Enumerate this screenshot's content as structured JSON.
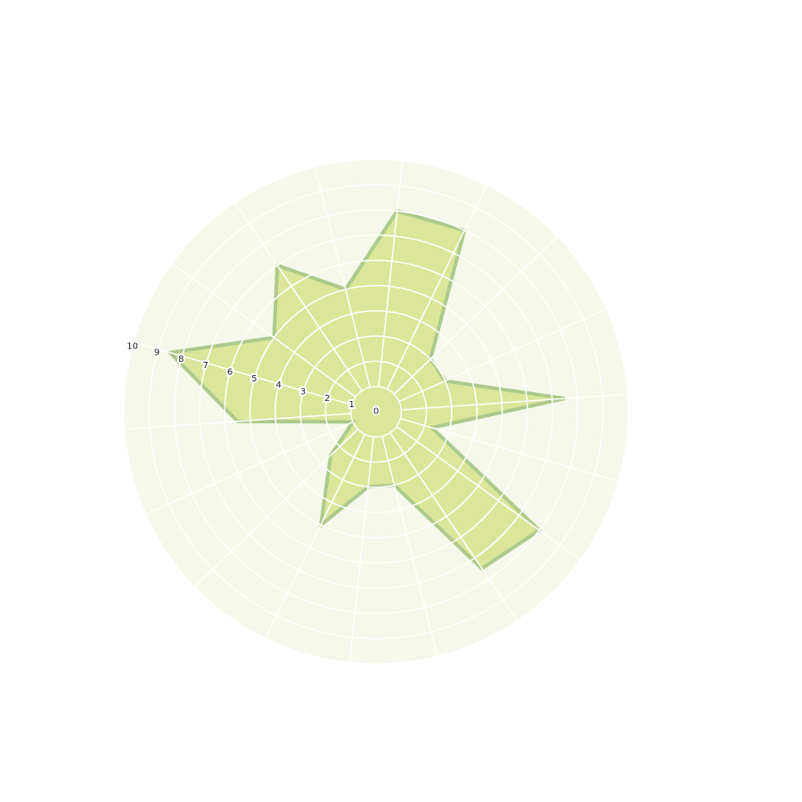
{
  "chart_data": {
    "type": "radar",
    "title": "",
    "rlim": [
      0,
      10
    ],
    "tick_labels": [
      "0",
      "1",
      "2",
      "3",
      "4",
      "5",
      "6",
      "7",
      "8",
      "9",
      "10"
    ],
    "spoke_count": 18,
    "first_spoke_angle_deg": 84,
    "label_axis_angle_deg": 165,
    "grid": true,
    "series": [
      {
        "values": [
          8.0,
          8.0,
          3.0,
          3.0,
          7.5,
          2.3,
          8.0,
          7.5,
          3.0,
          3.0,
          5.0,
          2.5,
          1.0,
          5.5,
          8.5,
          5.0,
          7.0,
          5.0
        ]
      }
    ],
    "colors": {
      "background": "#f5f8ea",
      "grid": "#ffffff",
      "fill": "#dbe69a",
      "stroke": "#aec98b"
    }
  }
}
